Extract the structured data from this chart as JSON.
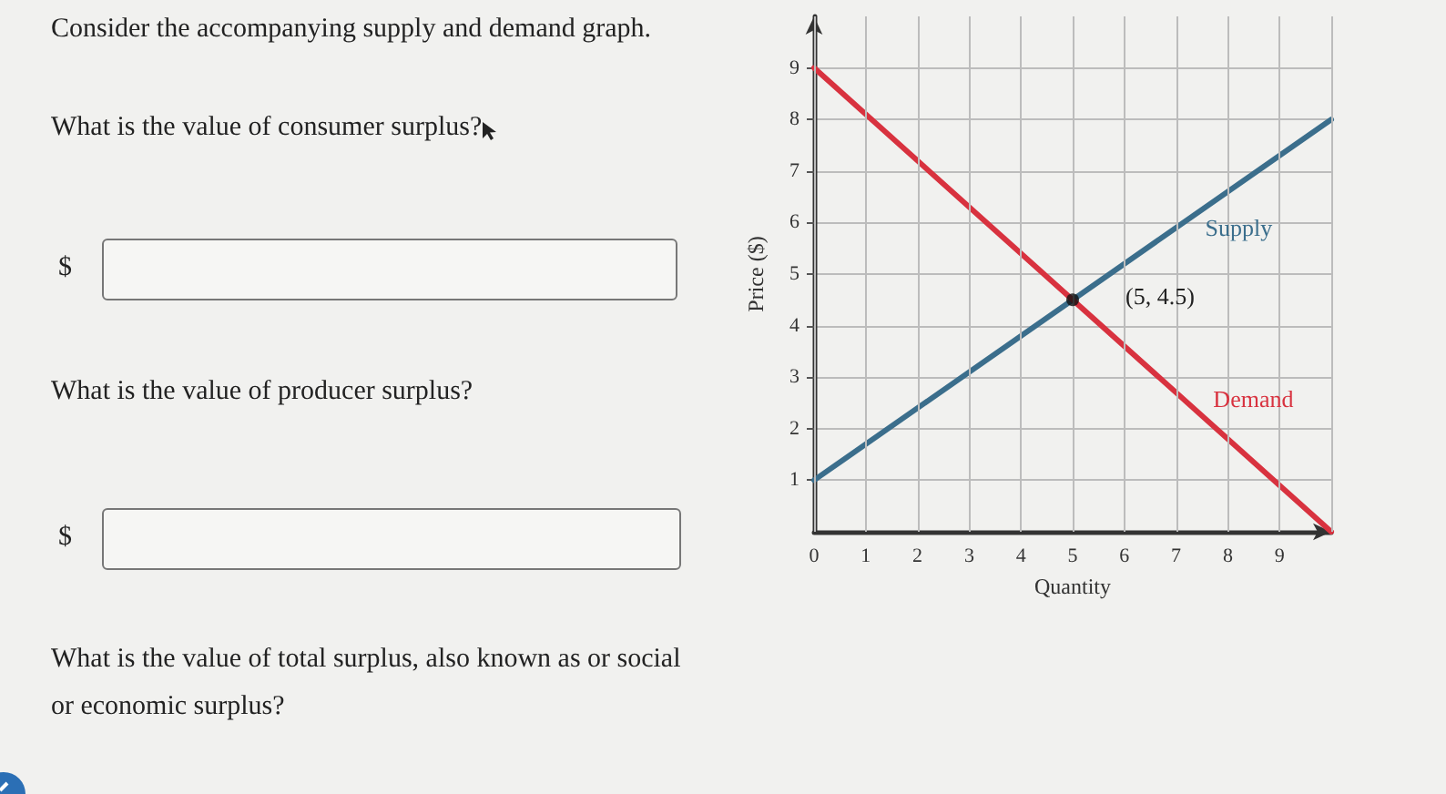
{
  "chart_data": {
    "type": "line",
    "title": "Consider the accompanying supply and demand graph.",
    "xlabel": "Quantity",
    "ylabel": "Price ($)",
    "xlim": [
      0,
      10
    ],
    "ylim": [
      0,
      10
    ],
    "xticks": [
      0,
      1,
      2,
      3,
      4,
      5,
      6,
      7,
      8,
      9
    ],
    "yticks": [
      1,
      2,
      3,
      4,
      5,
      6,
      7,
      8,
      9
    ],
    "grid": true,
    "legend": false,
    "marker": "none",
    "line_style": "solid",
    "series": [
      {
        "name": "Supply",
        "color": "#3b6e8c",
        "x": [
          0,
          10
        ],
        "values": [
          1,
          8
        ]
      },
      {
        "name": "Demand",
        "color": "#d8323f",
        "x": [
          0,
          10
        ],
        "values": [
          9,
          0
        ]
      },
      {
        "type": "scatter",
        "marker": "circle",
        "color": "#111111",
        "x": [
          5
        ],
        "values": [
          4.5
        ]
      }
    ],
    "annotations": [
      "What is the value of consumer surplus?",
      "$",
      "What is the value of producer surplus?",
      "$",
      "What is the value of total surplus, also known as or social or economic surplus?",
      {
        "text": "(5, 4.5)",
        "x": 5,
        "y": 4.5
      }
    ]
  }
}
